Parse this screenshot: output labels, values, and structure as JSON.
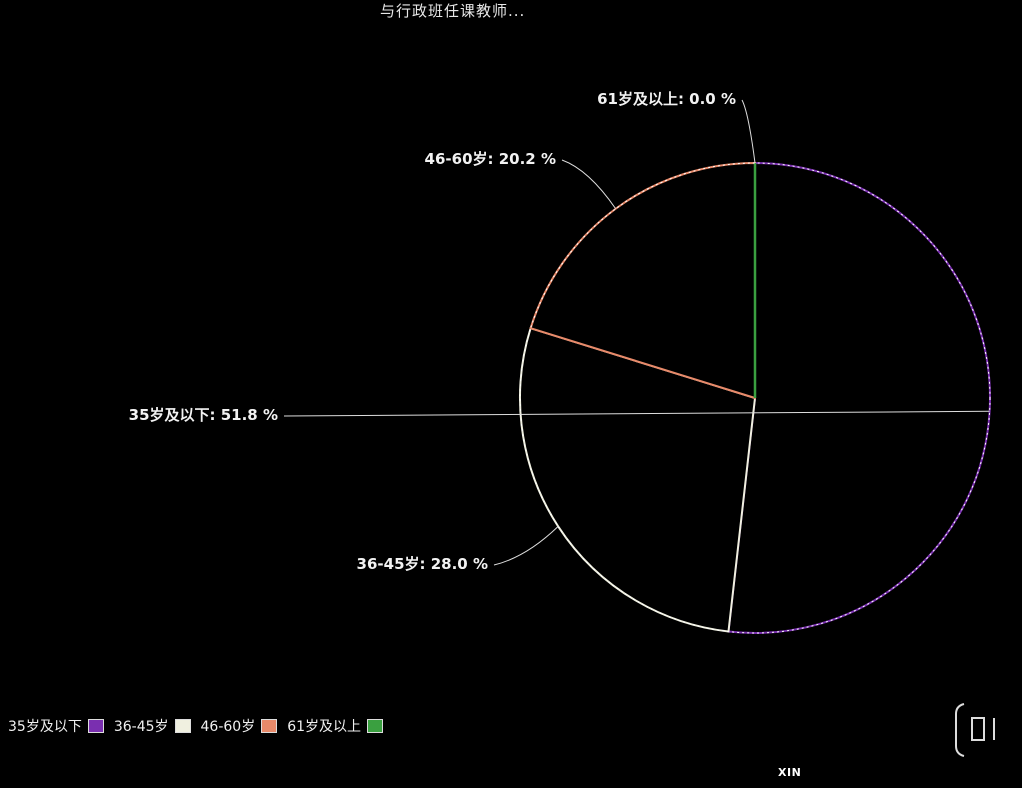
{
  "chart_data": {
    "type": "pie",
    "title": "与行政班任课教师...",
    "categories": [
      "35岁及以下",
      "36-45岁",
      "46-60岁",
      "61岁及以上"
    ],
    "values": [
      51.8,
      28.0,
      20.2,
      0.0
    ],
    "data_labels": [
      "35岁及以下: 51.8 %",
      "36-45岁: 28.0 %",
      "46-60岁: 20.2 %",
      "61岁及以上: 0.0 %"
    ],
    "colors": [
      "#7a2fb0",
      "#f0f0e0",
      "#e88a6a",
      "#3aa040"
    ],
    "legend_position": "bottom-left"
  },
  "watermark": "XIN",
  "colors": {
    "background": "#000000",
    "slice_edge": "#ffffff"
  }
}
